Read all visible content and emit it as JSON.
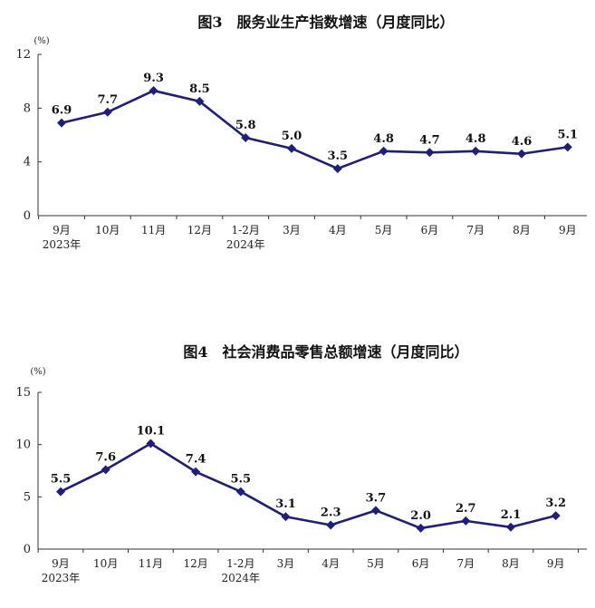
{
  "chart_data": [
    {
      "type": "line",
      "title": "图3　服务业生产指数增速（月度同比）",
      "unit": "(%)",
      "categories": [
        "9月",
        "10月",
        "11月",
        "12月",
        "1-2月",
        "3月",
        "4月",
        "5月",
        "6月",
        "7月",
        "8月",
        "9月"
      ],
      "year_labels": [
        "2023年",
        "2024年"
      ],
      "year_label_at": [
        0,
        4
      ],
      "values": [
        6.9,
        7.7,
        9.3,
        8.5,
        5.8,
        5.0,
        3.5,
        4.8,
        4.7,
        4.8,
        4.6,
        5.1
      ],
      "value_labels": [
        "6.9",
        "7.7",
        "9.3",
        "8.5",
        "5.8",
        "5.0",
        "3.5",
        "4.8",
        "4.7",
        "4.8",
        "4.6",
        "5.1"
      ],
      "yticks": [
        "0",
        "4",
        "8",
        "12"
      ],
      "ytick_values": [
        0,
        4,
        8,
        12
      ],
      "ylim": [
        0,
        12
      ],
      "grid": false,
      "line_color": "#1f1f7a"
    },
    {
      "type": "line",
      "title": "图4　社会消费品零售总额增速（月度同比）",
      "unit": "(%)",
      "categories": [
        "9月",
        "10月",
        "11月",
        "12月",
        "1-2月",
        "3月",
        "4月",
        "5月",
        "6月",
        "7月",
        "8月",
        "9月"
      ],
      "year_labels": [
        "2023年",
        "2024年"
      ],
      "year_label_at": [
        0,
        4
      ],
      "values": [
        5.5,
        7.6,
        10.1,
        7.4,
        5.5,
        3.1,
        2.3,
        3.7,
        2.0,
        2.7,
        2.1,
        3.2
      ],
      "value_labels": [
        "5.5",
        "7.6",
        "10.1",
        "7.4",
        "5.5",
        "3.1",
        "2.3",
        "3.7",
        "2.0",
        "2.7",
        "2.1",
        "3.2"
      ],
      "yticks": [
        "0",
        "5",
        "10",
        "15"
      ],
      "ytick_values": [
        0,
        5,
        10,
        15
      ],
      "ylim": [
        0,
        15
      ],
      "grid": false,
      "line_color": "#1f1f7a"
    }
  ]
}
